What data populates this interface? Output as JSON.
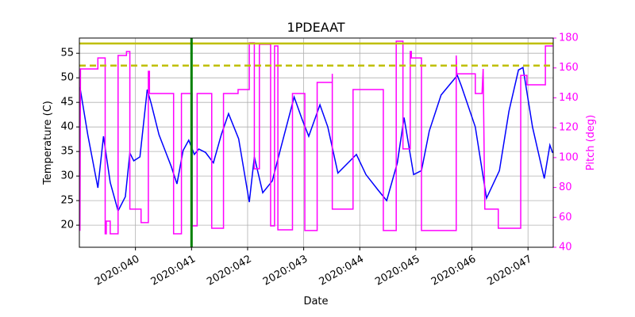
{
  "chart_data": {
    "type": "line",
    "title": "1PDEAAT",
    "xlabel": "Date",
    "ylabel": "Temperature (C)",
    "y2label": "Pitch (deg)",
    "y2color": "#ff00ff",
    "grid": true,
    "xlim": [
      39.0,
      47.45
    ],
    "xticks": [
      {
        "value": 40,
        "label": "2020:040"
      },
      {
        "value": 41,
        "label": "2020:041"
      },
      {
        "value": 42,
        "label": "2020:042"
      },
      {
        "value": 43,
        "label": "2020:043"
      },
      {
        "value": 44,
        "label": "2020:044"
      },
      {
        "value": 45,
        "label": "2020:045"
      },
      {
        "value": 46,
        "label": "2020:046"
      },
      {
        "value": 47,
        "label": "2020:047"
      }
    ],
    "ylim": [
      15.5,
      58.1
    ],
    "yticks": [
      20,
      25,
      30,
      35,
      40,
      45,
      50,
      55
    ],
    "y2lim": [
      40,
      180
    ],
    "y2ticks": [
      40,
      60,
      80,
      100,
      120,
      140,
      160,
      180
    ],
    "reference_lines": [
      {
        "axis": "y",
        "value": 57,
        "color": "#bfbf00",
        "style": "solid"
      },
      {
        "axis": "y",
        "value": 52.5,
        "color": "#bfbf00",
        "style": "dashed"
      },
      {
        "axis": "x",
        "value": 41,
        "color": "#008000",
        "style": "solid"
      }
    ],
    "series": [
      {
        "name": "Temperature",
        "color": "#0000ff",
        "axis": "y",
        "x": [
          39.01,
          39.15,
          39.33,
          39.43,
          39.55,
          39.69,
          39.82,
          39.9,
          39.97,
          40.08,
          40.21,
          40.28,
          40.42,
          40.64,
          40.74,
          40.85,
          40.95,
          41.05,
          41.13,
          41.25,
          41.39,
          41.53,
          41.66,
          41.84,
          42.03,
          42.12,
          42.27,
          42.44,
          42.58,
          42.83,
          42.97,
          43.09,
          43.29,
          43.43,
          43.61,
          43.94,
          44.11,
          44.33,
          44.48,
          44.67,
          44.79,
          44.96,
          45.1,
          45.24,
          45.45,
          45.74,
          45.81,
          46.06,
          46.26,
          46.49,
          46.66,
          46.83,
          46.91,
          47.08,
          47.29,
          47.39,
          47.44
        ],
        "values": [
          48.1,
          38.4,
          27.6,
          38.1,
          28.7,
          22.9,
          25.8,
          34.7,
          33.1,
          33.9,
          47.6,
          44.8,
          38.4,
          31.9,
          28.4,
          35.2,
          37.3,
          34.4,
          35.5,
          34.8,
          32.7,
          38.4,
          42.7,
          37.6,
          24.7,
          33.9,
          26.6,
          29.0,
          35.2,
          46.1,
          41.6,
          38.1,
          44.5,
          40.0,
          30.6,
          34.4,
          30.3,
          27.1,
          25.0,
          32.7,
          41.9,
          30.3,
          31.1,
          39.2,
          46.5,
          50.5,
          48.4,
          40.0,
          25.5,
          31.1,
          43.2,
          51.6,
          52.1,
          40.0,
          29.5,
          36.3,
          34.7
        ]
      },
      {
        "name": "Pitch",
        "color": "#ff00ff",
        "axis": "y2",
        "x": [
          39.01,
          39.02,
          39.33,
          39.33,
          39.46,
          39.46,
          39.48,
          39.48,
          39.55,
          39.55,
          39.69,
          39.69,
          39.84,
          39.84,
          39.9,
          39.9,
          40.1,
          40.1,
          40.23,
          40.23,
          40.25,
          40.25,
          40.68,
          40.68,
          40.82,
          40.82,
          41.01,
          41.01,
          41.1,
          41.1,
          41.36,
          41.36,
          41.57,
          41.57,
          41.83,
          41.83,
          42.03,
          42.03,
          42.12,
          42.12,
          42.21,
          42.21,
          42.41,
          42.41,
          42.48,
          42.48,
          42.54,
          42.54,
          42.8,
          42.8,
          43.02,
          43.02,
          43.24,
          43.24,
          43.51,
          43.51,
          43.51,
          43.88,
          43.88,
          44.42,
          44.42,
          44.65,
          44.65,
          44.77,
          44.77,
          44.9,
          44.9,
          44.92,
          44.92,
          45.1,
          45.1,
          45.72,
          45.72,
          45.73,
          46.06,
          46.06,
          46.18,
          46.2,
          46.23,
          46.47,
          46.47,
          46.87,
          46.87,
          46.98,
          46.98,
          47.31,
          47.31,
          47.44
        ],
        "values": [
          51,
          159.3,
          159.3,
          166.7,
          166.7,
          49,
          49,
          57.5,
          57.5,
          49,
          49,
          168.3,
          168.3,
          171,
          171,
          65.5,
          65.5,
          56.5,
          56.5,
          157.7,
          157.7,
          142.9,
          142.9,
          49,
          49,
          142.9,
          142.9,
          54.3,
          54.3,
          142.9,
          142.9,
          52.7,
          52.7,
          142.9,
          142.9,
          145.5,
          145.5,
          176.8,
          176.8,
          92.5,
          92.5,
          175.8,
          175.8,
          54.3,
          54.3,
          174.7,
          174.7,
          51.7,
          51.7,
          142.9,
          142.9,
          51.2,
          51.2,
          150.3,
          150.3,
          156.1,
          65.5,
          65.5,
          145.5,
          145.5,
          51.2,
          51.2,
          177.9,
          177.9,
          105.8,
          105.8,
          171,
          171,
          166.7,
          166.7,
          51.2,
          51.2,
          168.3,
          156.1,
          156.1,
          142.9,
          142.9,
          159.3,
          65.5,
          65.5,
          52.7,
          52.7,
          155,
          155,
          148.7,
          148.7,
          174.7,
          174.7
        ]
      }
    ]
  }
}
